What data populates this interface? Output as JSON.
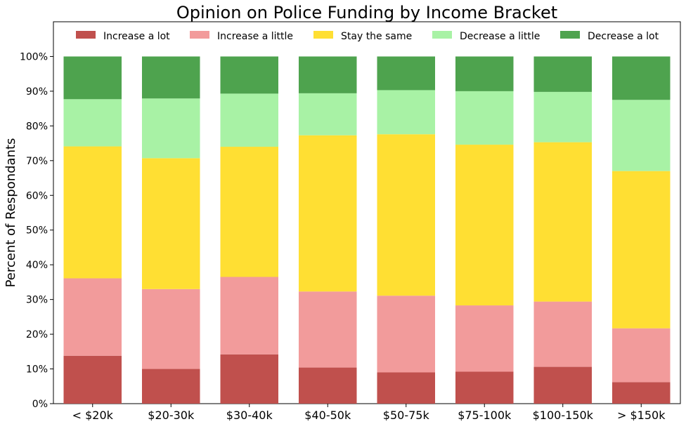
{
  "chart_data": {
    "type": "bar",
    "stacked": true,
    "title": "Opinion on Police Funding by Income Bracket",
    "xlabel": "",
    "ylabel": "Percent of Respondants",
    "ylim": [
      0,
      110
    ],
    "yticks": [
      0,
      10,
      20,
      30,
      40,
      50,
      60,
      70,
      80,
      90,
      100
    ],
    "ytick_labels": [
      "0%",
      "10%",
      "20%",
      "30%",
      "40%",
      "50%",
      "60%",
      "70%",
      "80%",
      "90%",
      "100%"
    ],
    "legend_position": "top",
    "grid": false,
    "categories": [
      "< $20k",
      "$20-30k",
      "$30-40k",
      "$40-50k",
      "$50-75k",
      "$75-100k",
      "$100-150k",
      "> $150k"
    ],
    "series": [
      {
        "name": "Increase a lot",
        "color": "#c0504d",
        "values": [
          13.8,
          10.0,
          14.2,
          10.4,
          9.0,
          9.2,
          10.6,
          6.2
        ]
      },
      {
        "name": "Increase a little",
        "color": "#f29b9b",
        "values": [
          22.3,
          23.0,
          22.3,
          21.9,
          22.1,
          19.1,
          18.8,
          15.5
        ]
      },
      {
        "name": "Stay the same",
        "color": "#ffdf33",
        "values": [
          38.0,
          37.7,
          37.5,
          45.0,
          46.5,
          46.3,
          45.9,
          45.3
        ]
      },
      {
        "name": "Decrease a little",
        "color": "#a8f2a5",
        "values": [
          13.6,
          17.2,
          15.3,
          12.1,
          12.7,
          15.4,
          14.5,
          20.5
        ]
      },
      {
        "name": "Decrease a lot",
        "color": "#4ea34e",
        "values": [
          12.3,
          12.1,
          10.7,
          10.6,
          9.7,
          10.0,
          10.2,
          12.5
        ]
      }
    ]
  }
}
